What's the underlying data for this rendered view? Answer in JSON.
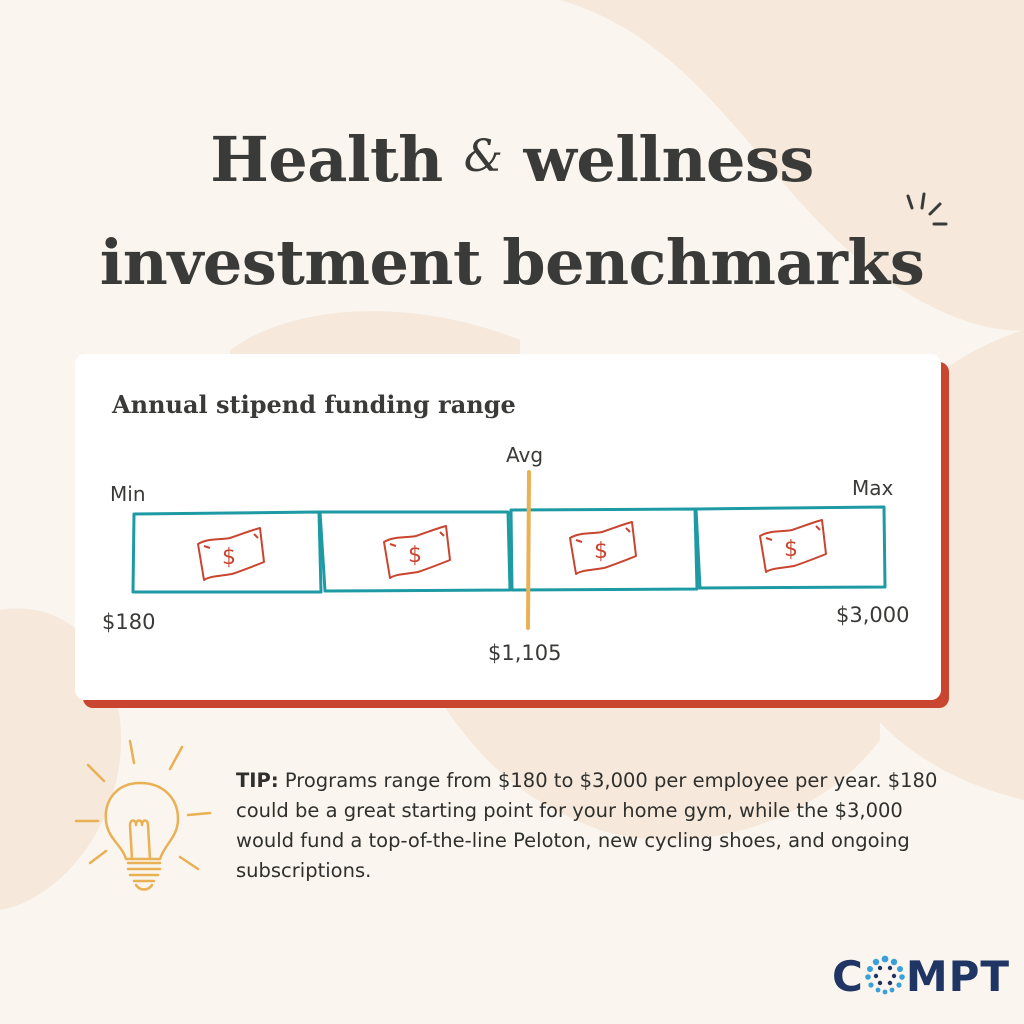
{
  "title": {
    "line1_a": "Health",
    "amp": "&",
    "line1_b": "wellness",
    "line2": "investment benchmarks"
  },
  "card": {
    "title": "Annual stipend funding range",
    "min_label": "Min",
    "max_label": "Max",
    "avg_label": "Avg",
    "min_value": "$180",
    "avg_value": "$1,105",
    "max_value": "$3,000"
  },
  "tip": {
    "lead": "TIP:",
    "text": "Programs range from $180 to $3,000 per employee per year. $180 could be a great starting point for your home gym, while the $3,000 would fund a top-of-the-line Peloton, new cycling shoes, and ongoing subscriptions."
  },
  "logo": {
    "c": "C",
    "rest": "MPT"
  },
  "colors": {
    "background": "#faf5ef",
    "blob": "#f6e8da",
    "text": "#3a3b38",
    "card_shadow": "#c9452f",
    "bill_outline": "#1d9aa4",
    "bill_icon": "#c9452f",
    "avg_line": "#e9b054",
    "bulb": "#e9b054",
    "logo": "#1f3563",
    "logo_dots": "#3aa0d8"
  },
  "icons": [
    "sparkle-icon",
    "dollar-bill-icon",
    "light-bulb-icon"
  ]
}
